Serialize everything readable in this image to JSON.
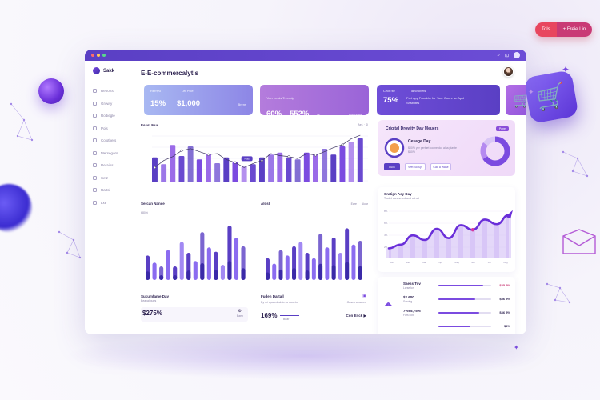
{
  "promo": {
    "btn_a": "Tols",
    "btn_b": "+ Freie Lin"
  },
  "sidebar": {
    "brand": "Sakk",
    "items": [
      "Reports",
      "Growty",
      "Rodiegle",
      "Pois",
      "Colothers",
      "Mersegors",
      "Rerains",
      "Setz",
      "Raftsi",
      "Lxe"
    ]
  },
  "header": {
    "title": "E-E-commercalytis"
  },
  "kpis": [
    {
      "label_a": "Rernyu",
      "label_b": "Ler Pike",
      "value_a": "15%",
      "value_b": "$1,000",
      "note": "Brens"
    },
    {
      "label_a": "Yoer Lerds Trercldp",
      "value_a": "60%",
      "value_b": "552%",
      "suffix": "bt",
      "note": "Alls ramis"
    },
    {
      "label_a": "Cecrl tte",
      "label_b": "la Wlovets",
      "value_a": "75%",
      "desc": "Fert apy Focekhy for Your Conre an Appl Snstvites"
    }
  ],
  "chart_main": {
    "title": "Essst Mus",
    "legend": "Ae1 · Sl",
    "tag": "Nas"
  },
  "chart_data": [
    {
      "type": "bar",
      "title": "Essst Mus",
      "values": [
        52,
        38,
        78,
        55,
        75,
        48,
        60,
        40,
        52,
        42,
        33,
        38,
        52,
        58,
        62,
        52,
        48,
        62,
        58,
        70,
        58,
        75,
        85,
        92
      ],
      "line": [
        30,
        44,
        52,
        64,
        68,
        62,
        56,
        58,
        46,
        40,
        30,
        38,
        44,
        58,
        54,
        52,
        48,
        58,
        55,
        62,
        70,
        76,
        88,
        95
      ]
    },
    {
      "type": "bar",
      "title": "Sercan Nance",
      "values": [
        45,
        32,
        25,
        55,
        25,
        70,
        50,
        35,
        88,
        60,
        52,
        28,
        100,
        78,
        62
      ]
    },
    {
      "type": "bar",
      "title": "Alosl",
      "values": [
        40,
        30,
        55,
        45,
        62,
        70,
        50,
        40,
        85,
        60,
        78,
        50,
        95,
        65,
        72
      ]
    },
    {
      "type": "area",
      "title": "Cratign Acy Day",
      "values": [
        20,
        28,
        48,
        38,
        62,
        42,
        70,
        60,
        82,
        72,
        92
      ]
    }
  ],
  "bars_card_1": {
    "title": "Sercan Nance",
    "pct": "680%"
  },
  "bars_card_2": {
    "title": "Alosl",
    "legend_a": "Eare",
    "legend_b": "Aloar"
  },
  "pink_card": {
    "title": "Crigital Drowity Day Meuers",
    "tag": "Pone",
    "sub_title": "Cesage Day",
    "line_1": "$00% yer perluet coune dor aloa plaste",
    "line_2": "$60%",
    "btn_1": "Luck",
    "btn_2": "Wet Bo Syt",
    "btn_3": "Cad a Wase"
  },
  "area_card": {
    "title": "Cratign Acy Day",
    "sub": "Trudet conmesed and sst alt",
    "y_ticks": [
      "8%",
      "6%",
      "4%",
      "2%"
    ],
    "x_ticks": [
      "Jan",
      "Fab",
      "Mar",
      "Apr",
      "May",
      "Jun",
      "Jul",
      "Aug"
    ]
  },
  "stat_card_1": {
    "title": "Sucumfame Day",
    "sub": "Beacal gues",
    "value": "$275%",
    "note": "Baen"
  },
  "stat_card_2": {
    "title": "Fuden Dartall",
    "sub": "Ey mi upased sk to su aooets",
    "extra": "Oases cowered",
    "value": "169%",
    "legend": "Bear",
    "cta": "Con Enck"
  },
  "list_card": {
    "rows": [
      {
        "label": "Saess Tov",
        "sub": "Larsefion",
        "value": "$55.5%",
        "fill": 0.85
      },
      {
        "label": "$2 600",
        "sub": "Scrulng",
        "value": "$56 5%",
        "fill": 0.7
      },
      {
        "label": "7%95,75%",
        "sub": "Fors colt",
        "value": "$36 5%",
        "fill": 0.78
      },
      {
        "label": "",
        "sub": "",
        "value": "$4%",
        "fill": 0.6
      }
    ]
  }
}
